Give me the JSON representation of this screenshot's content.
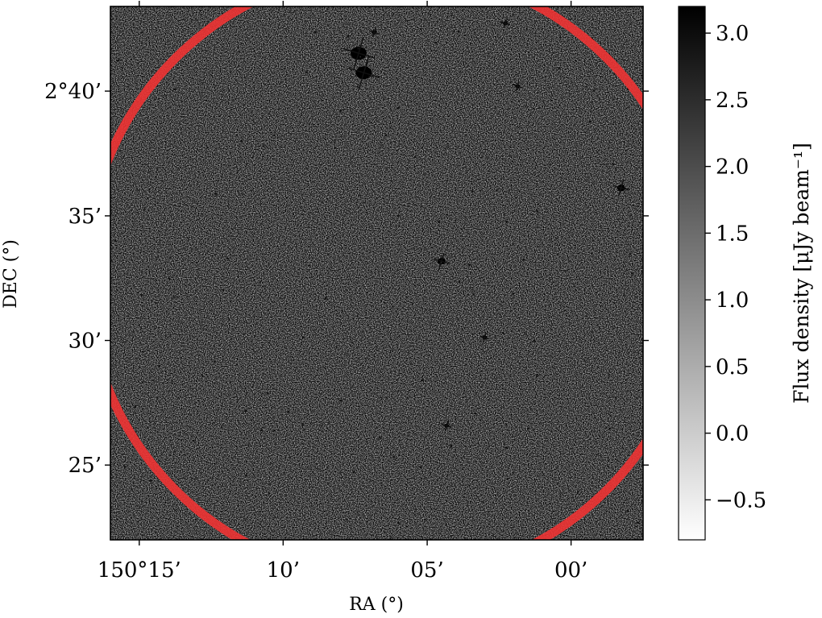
{
  "chart_data": {
    "type": "heatmap",
    "description_kind": "radio continuum image",
    "xlabel": "RA (°)",
    "ylabel": "DEC (°)",
    "x_ticks": [
      {
        "value": 150.25,
        "label": "150°15’"
      },
      {
        "value": 150.1667,
        "label": "10’"
      },
      {
        "value": 150.0833,
        "label": "05’"
      },
      {
        "value": 150.0,
        "label": "00’"
      }
    ],
    "y_ticks": [
      {
        "value": 2.6667,
        "label": "2°40’"
      },
      {
        "value": 2.5833,
        "label": "35’"
      },
      {
        "value": 2.5,
        "label": "30’"
      },
      {
        "value": 2.4167,
        "label": "25’"
      }
    ],
    "xlim": [
      150.2667,
      149.9583
    ],
    "ylim": [
      2.3667,
      2.7233
    ],
    "colorbar": {
      "label": "Flux density [μJy beam⁻¹]",
      "cmap": "gray_r",
      "range": [
        -0.8,
        3.2
      ],
      "ticks": [
        {
          "value": 3.0,
          "label": "3.0"
        },
        {
          "value": 2.5,
          "label": "2.5"
        },
        {
          "value": 2.0,
          "label": "2.0"
        },
        {
          "value": 1.5,
          "label": "1.5"
        },
        {
          "value": 1.0,
          "label": "1.0"
        },
        {
          "value": 0.5,
          "label": "0.5"
        },
        {
          "value": 0.0,
          "label": "0.0"
        },
        {
          "value": -0.5,
          "label": "−0.5"
        }
      ]
    },
    "overlay": {
      "shape": "circle",
      "color": "#ee3333",
      "center": {
        "ra": 150.1042,
        "dec": 2.5444
      },
      "radius_deg": 0.1767
    },
    "sources": [
      {
        "ra": 150.12,
        "dec": 2.679,
        "kind": "bright"
      },
      {
        "ra": 150.123,
        "dec": 2.692,
        "kind": "bright"
      },
      {
        "ra": 150.114,
        "dec": 2.706,
        "kind": "faint"
      },
      {
        "ra": 149.971,
        "dec": 2.602,
        "kind": "medium"
      },
      {
        "ra": 150.075,
        "dec": 2.553,
        "kind": "medium"
      },
      {
        "ra": 150.05,
        "dec": 2.502,
        "kind": "faint"
      },
      {
        "ra": 150.072,
        "dec": 2.443,
        "kind": "faint"
      },
      {
        "ra": 150.038,
        "dec": 2.712,
        "kind": "faint"
      },
      {
        "ra": 150.031,
        "dec": 2.67,
        "kind": "faint"
      }
    ]
  }
}
